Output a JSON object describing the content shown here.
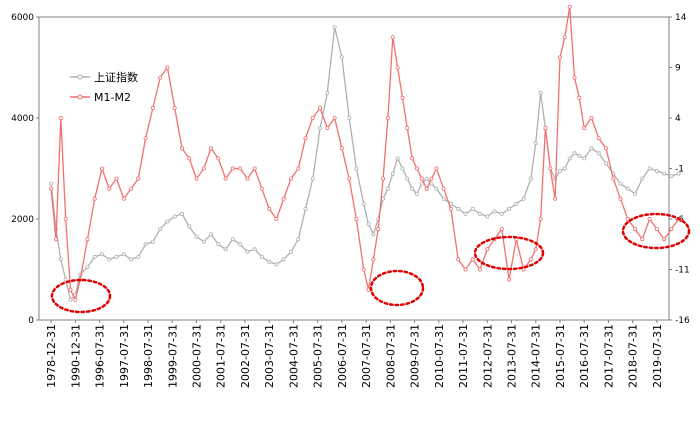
{
  "chart_data": {
    "type": "line",
    "x_labels": [
      "1978-12-31",
      "1990-12-31",
      "1996-07-31",
      "1997-07-31",
      "1998-07-31",
      "1999-07-31",
      "2000-07-31",
      "2001-07-31",
      "2002-07-31",
      "2003-07-31",
      "2004-07-31",
      "2005-07-31",
      "2006-07-31",
      "2007-07-31",
      "2008-07-31",
      "2009-07-31",
      "2010-07-31",
      "2011-07-31",
      "2012-07-31",
      "2013-07-31",
      "2014-07-31",
      "2015-07-31",
      "2016-07-31",
      "2017-07-31",
      "2018-07-31",
      "2019-07-31"
    ],
    "y_left": {
      "min": 0,
      "max": 6000,
      "ticks": [
        0,
        2000,
        4000,
        6000
      ]
    },
    "y_right": {
      "min": -16,
      "max": 14,
      "ticks": [
        -16,
        -11,
        -6,
        -1,
        4,
        9,
        14
      ]
    },
    "legend_position": "top-left",
    "series": [
      {
        "name": "上证指数",
        "axis": "left",
        "color": "#b0b0b0",
        "x": [
          0,
          0.2,
          0.4,
          0.6,
          0.8,
          1,
          1.2,
          1.5,
          1.8,
          2.1,
          2.4,
          2.7,
          3.0,
          3.3,
          3.6,
          3.9,
          4.2,
          4.5,
          4.8,
          5.1,
          5.4,
          5.7,
          6.0,
          6.3,
          6.6,
          6.9,
          7.2,
          7.5,
          7.8,
          8.1,
          8.4,
          8.7,
          9.0,
          9.3,
          9.6,
          9.9,
          10.2,
          10.5,
          10.8,
          11.1,
          11.4,
          11.7,
          12.0,
          12.3,
          12.6,
          12.9,
          13.1,
          13.3,
          13.5,
          13.7,
          13.9,
          14.1,
          14.3,
          14.5,
          14.7,
          14.9,
          15.1,
          15.3,
          15.5,
          15.7,
          15.9,
          16.2,
          16.5,
          16.8,
          17.1,
          17.4,
          17.7,
          18.0,
          18.3,
          18.6,
          18.9,
          19.2,
          19.5,
          19.8,
          20.0,
          20.2,
          20.4,
          20.6,
          20.8,
          21.0,
          21.2,
          21.4,
          21.6,
          21.8,
          22.0,
          22.3,
          22.6,
          22.9,
          23.2,
          23.5,
          23.8,
          24.1,
          24.4,
          24.7,
          25.0,
          25.3,
          25.6,
          25.9
        ],
        "values": [
          2700,
          1800,
          1200,
          800,
          400,
          500,
          900,
          1050,
          1250,
          1300,
          1200,
          1250,
          1300,
          1200,
          1250,
          1500,
          1550,
          1800,
          1950,
          2050,
          2100,
          1850,
          1650,
          1550,
          1700,
          1500,
          1400,
          1600,
          1500,
          1350,
          1400,
          1250,
          1150,
          1100,
          1200,
          1350,
          1600,
          2200,
          2800,
          3800,
          4500,
          5800,
          5200,
          4000,
          3000,
          2300,
          1900,
          1700,
          2000,
          2400,
          2600,
          2900,
          3200,
          3000,
          2800,
          2600,
          2500,
          2700,
          2800,
          2700,
          2600,
          2400,
          2300,
          2200,
          2100,
          2200,
          2100,
          2050,
          2150,
          2100,
          2200,
          2300,
          2400,
          2800,
          3500,
          4500,
          3800,
          3000,
          2800,
          2950,
          3000,
          3200,
          3300,
          3250,
          3200,
          3400,
          3300,
          3100,
          2900,
          2700,
          2600,
          2500,
          2800,
          3000,
          2950,
          2900,
          2850,
          2900
        ]
      },
      {
        "name": "M1-M2",
        "axis": "right",
        "color": "#f07070",
        "x": [
          0,
          0.2,
          0.4,
          0.6,
          0.8,
          1,
          1.2,
          1.5,
          1.8,
          2.1,
          2.4,
          2.7,
          3.0,
          3.3,
          3.6,
          3.9,
          4.2,
          4.5,
          4.8,
          5.1,
          5.4,
          5.7,
          6.0,
          6.3,
          6.6,
          6.9,
          7.2,
          7.5,
          7.8,
          8.1,
          8.4,
          8.7,
          9.0,
          9.3,
          9.6,
          9.9,
          10.2,
          10.5,
          10.8,
          11.1,
          11.4,
          11.7,
          12.0,
          12.3,
          12.6,
          12.9,
          13.1,
          13.3,
          13.5,
          13.7,
          13.9,
          14.1,
          14.3,
          14.5,
          14.7,
          14.9,
          15.1,
          15.3,
          15.5,
          15.7,
          15.9,
          16.2,
          16.5,
          16.8,
          17.1,
          17.4,
          17.7,
          18.0,
          18.3,
          18.6,
          18.9,
          19.2,
          19.5,
          19.8,
          20.0,
          20.2,
          20.4,
          20.6,
          20.8,
          21.0,
          21.2,
          21.4,
          21.6,
          21.8,
          22.0,
          22.3,
          22.6,
          22.9,
          23.2,
          23.5,
          23.8,
          24.1,
          24.4,
          24.7,
          25.0,
          25.3,
          25.6,
          25.9
        ],
        "values": [
          -3,
          -8,
          4,
          -6,
          -13,
          -14,
          -12,
          -8,
          -4,
          -1,
          -3,
          -2,
          -4,
          -3,
          -2,
          2,
          5,
          8,
          9,
          5,
          1,
          0,
          -2,
          -1,
          1,
          0,
          -2,
          -1,
          -1,
          -2,
          -1,
          -3,
          -5,
          -6,
          -4,
          -2,
          -1,
          2,
          4,
          5,
          3,
          4,
          1,
          -2,
          -6,
          -11,
          -13,
          -10,
          -7,
          -2,
          4,
          12,
          9,
          6,
          3,
          0,
          -1,
          -2,
          -3,
          -2,
          -1,
          -3,
          -5,
          -10,
          -11,
          -10,
          -11,
          -9,
          -8,
          -7,
          -12,
          -8,
          -11,
          -10,
          -9,
          -6,
          3,
          -1,
          -4,
          10,
          12,
          15,
          8,
          6,
          3,
          4,
          2,
          1,
          -2,
          -4,
          -6,
          -7,
          -8,
          -6,
          -7,
          -8,
          -7,
          -6
        ]
      }
    ],
    "annotations": [
      {
        "shape": "dashed-ellipse",
        "color": "#e00000"
      },
      {
        "shape": "dashed-ellipse",
        "color": "#e00000"
      },
      {
        "shape": "dashed-ellipse",
        "color": "#e00000"
      },
      {
        "shape": "dashed-ellipse",
        "color": "#e00000"
      }
    ]
  }
}
